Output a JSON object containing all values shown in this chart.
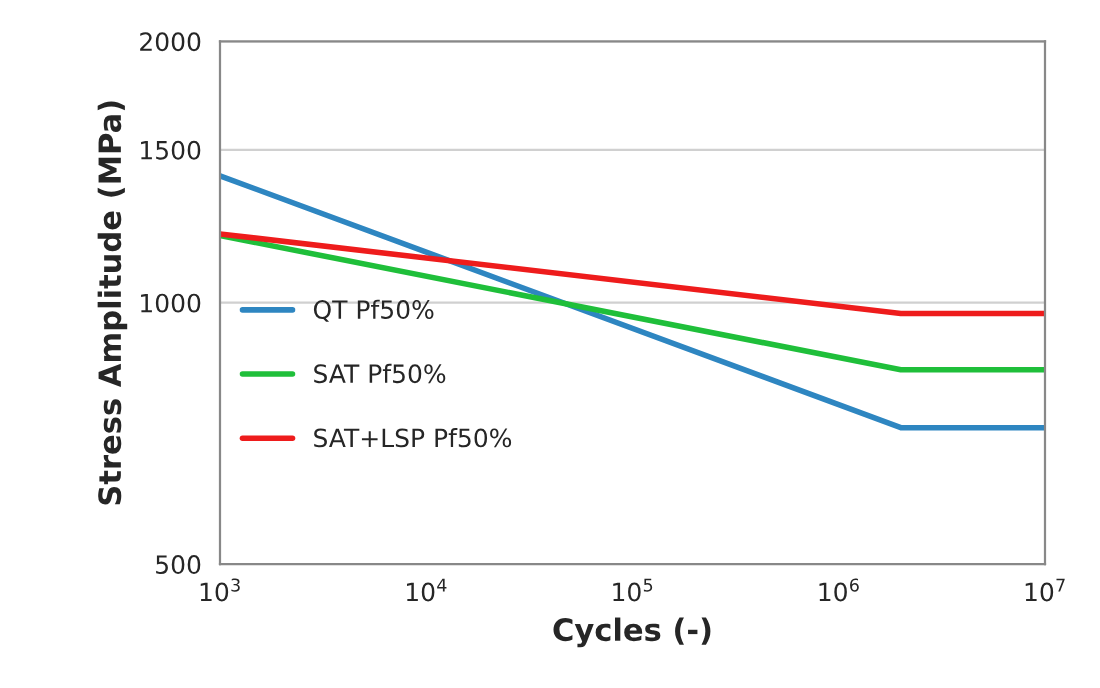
{
  "chart_data": {
    "type": "line",
    "xlabel": "Cycles (-)",
    "ylabel": "Stress Amplitude (MPa)",
    "log": "xy",
    "xlim": [
      1000,
      10000000
    ],
    "ylim": [
      500,
      2000
    ],
    "xticks": [
      {
        "value": 1000,
        "label": "10$^{3}$"
      },
      {
        "value": 10000,
        "label": "10$^{4}$"
      },
      {
        "value": 100000,
        "label": "10$^{5}$"
      },
      {
        "value": 1000000,
        "label": "10$^{6}$"
      },
      {
        "value": 10000000,
        "label": "10$^{7}$"
      }
    ],
    "yticks": [
      500,
      1000,
      1500,
      2000
    ],
    "x": [
      1000,
      2000000,
      10000000
    ],
    "series": [
      {
        "name": "QT Pf50%",
        "color": "#2e86c1",
        "values": [
          1400,
          718,
          718
        ]
      },
      {
        "name": "SAT Pf50%",
        "color": "#1fbf3a",
        "values": [
          1195,
          837,
          837
        ]
      },
      {
        "name": "SAT+LSP Pf50%",
        "color": "#ee1c1c",
        "values": [
          1200,
          972,
          972
        ]
      }
    ],
    "grid": "y",
    "legend": "left",
    "marker": "none",
    "line_style": "solid"
  }
}
